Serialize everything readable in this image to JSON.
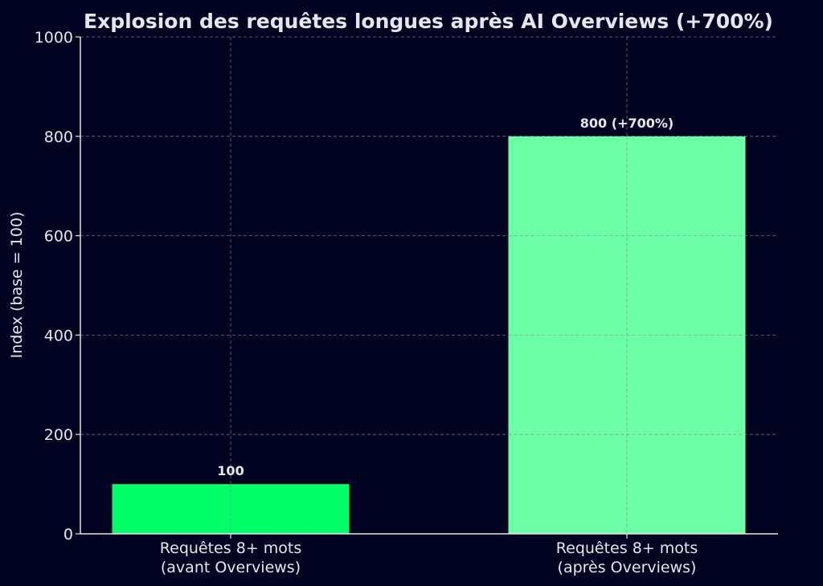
{
  "chart_data": {
    "type": "bar",
    "title": "Explosion des requêtes longues après AI Overviews (+700%)",
    "ylabel": "Index (base = 100)",
    "xlabel": "",
    "ylim": [
      0,
      1000
    ],
    "yticks": [
      0,
      200,
      400,
      600,
      800,
      1000
    ],
    "grid": true,
    "categories": [
      [
        "Requêtes 8+ mots",
        "(avant Overviews)"
      ],
      [
        "Requêtes 8+ mots",
        "(après Overviews)"
      ]
    ],
    "values": [
      100,
      800
    ],
    "data_labels": [
      "100",
      "800 (+700%)"
    ],
    "colors": [
      "#00ff66",
      "#6cffa8"
    ]
  }
}
